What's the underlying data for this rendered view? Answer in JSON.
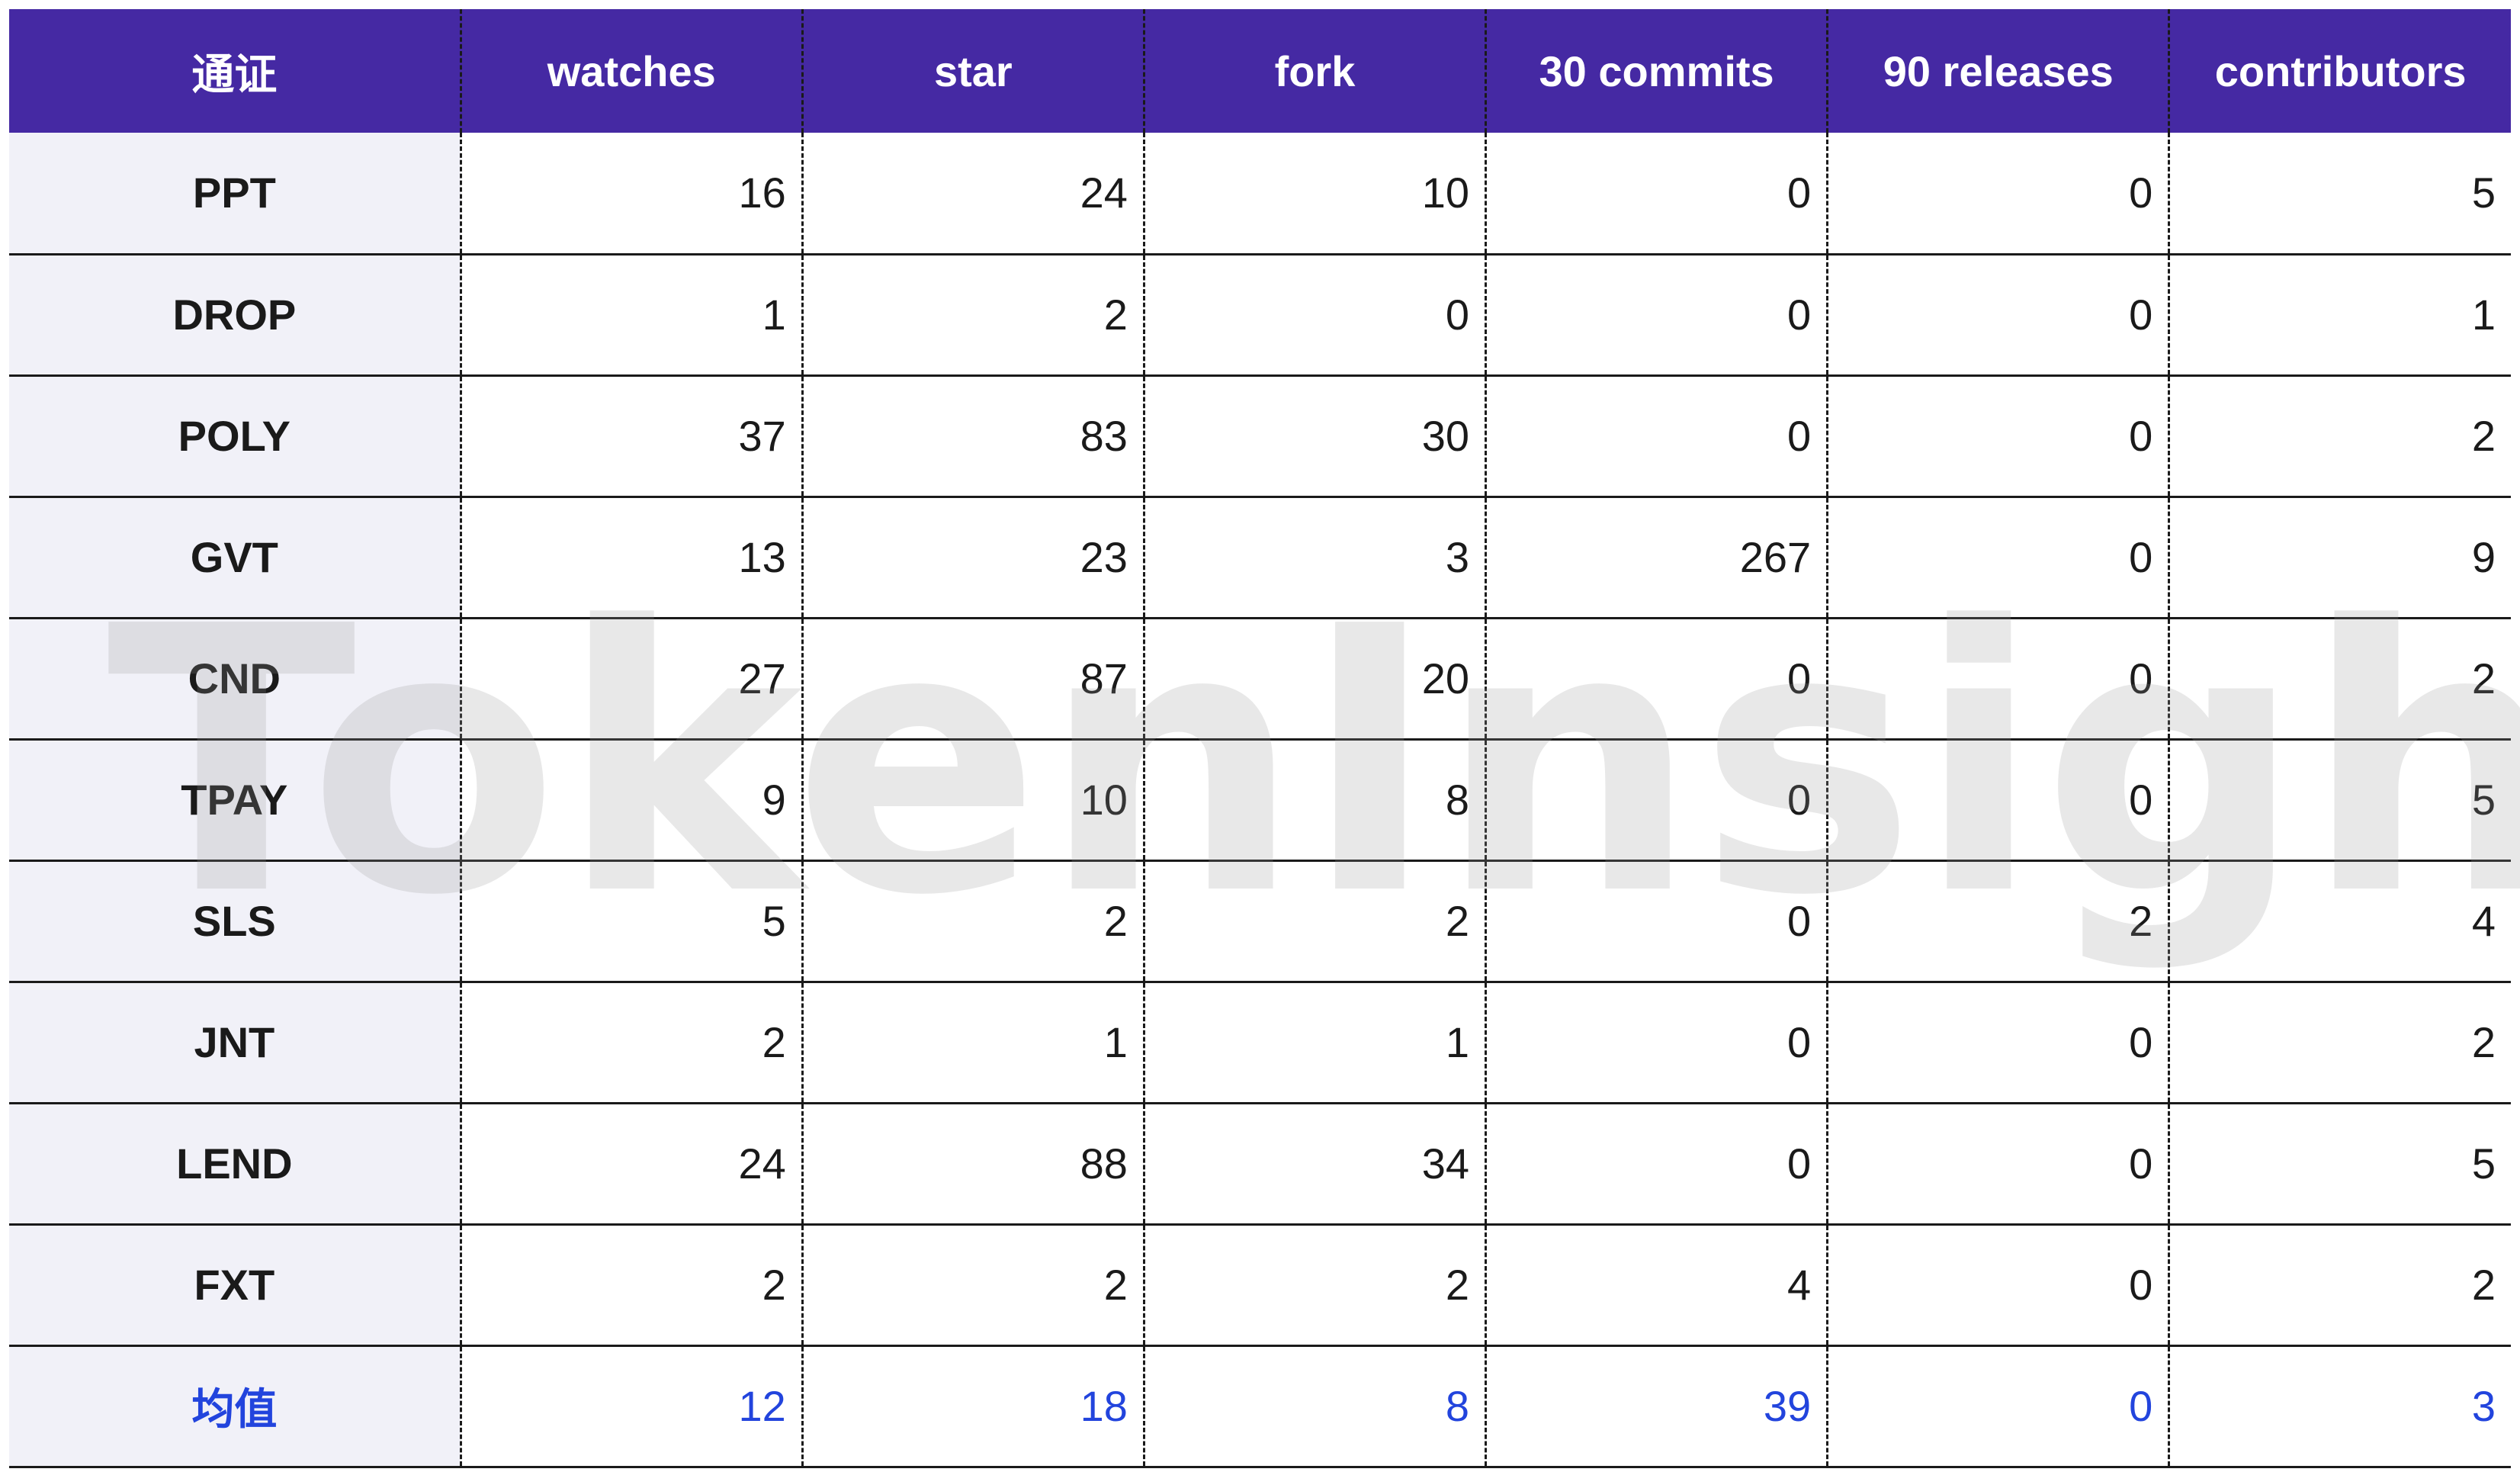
{
  "table": {
    "headers": [
      "通证",
      "watches",
      "star",
      "fork",
      "30 commits",
      "90 releases",
      "contributors"
    ],
    "rows": [
      {
        "name": "PPT",
        "values": [
          "16",
          "24",
          "10",
          "0",
          "0",
          "5"
        ]
      },
      {
        "name": "DROP",
        "values": [
          "1",
          "2",
          "0",
          "0",
          "0",
          "1"
        ]
      },
      {
        "name": "POLY",
        "values": [
          "37",
          "83",
          "30",
          "0",
          "0",
          "2"
        ]
      },
      {
        "name": "GVT",
        "values": [
          "13",
          "23",
          "3",
          "267",
          "0",
          "9"
        ]
      },
      {
        "name": "CND",
        "values": [
          "27",
          "87",
          "20",
          "0",
          "0",
          "2"
        ]
      },
      {
        "name": "TPAY",
        "values": [
          "9",
          "10",
          "8",
          "0",
          "0",
          "5"
        ]
      },
      {
        "name": "SLS",
        "values": [
          "5",
          "2",
          "2",
          "0",
          "2",
          "4"
        ]
      },
      {
        "name": "JNT",
        "values": [
          "2",
          "1",
          "1",
          "0",
          "0",
          "2"
        ]
      },
      {
        "name": "LEND",
        "values": [
          "24",
          "88",
          "34",
          "0",
          "0",
          "5"
        ]
      },
      {
        "name": "FXT",
        "values": [
          "2",
          "2",
          "2",
          "4",
          "0",
          "2"
        ]
      }
    ],
    "average": {
      "name": "均值",
      "values": [
        "12",
        "18",
        "8",
        "39",
        "0",
        "3"
      ]
    }
  },
  "watermark": "TokenInsight",
  "colors": {
    "header_bg": "#4529a3",
    "header_text": "#ffffff",
    "name_col_bg": "#f1f1f8",
    "average_text": "#2244dd",
    "body_text": "#1a1a1a"
  }
}
